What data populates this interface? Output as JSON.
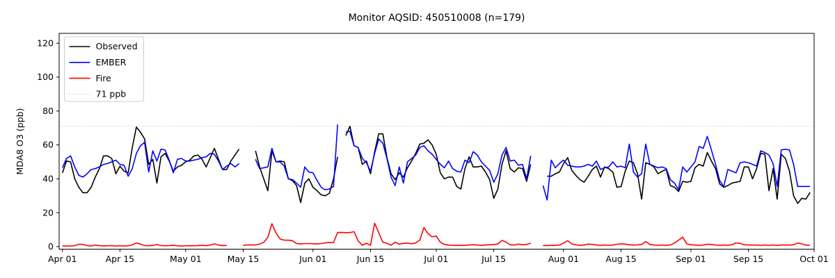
{
  "chart_data": {
    "type": "line",
    "title": "Monitor AQSID: 450510008 (n=179)",
    "xlabel": "",
    "ylabel": "MDA8 O3 (ppb)",
    "grid": false,
    "legend_position": "upper-left",
    "ylim": [
      -1.5,
      125.8
    ],
    "xlim_days": [
      -0.8,
      183
    ],
    "y_ticks": [
      0,
      20,
      40,
      60,
      80,
      100,
      120
    ],
    "x_ticks": [
      {
        "label": "Apr 01",
        "day": 0
      },
      {
        "label": "Apr 15",
        "day": 14
      },
      {
        "label": "May 01",
        "day": 30
      },
      {
        "label": "May 15",
        "day": 44
      },
      {
        "label": "Jun 01",
        "day": 61
      },
      {
        "label": "Jun 15",
        "day": 75
      },
      {
        "label": "Jul 01",
        "day": 91
      },
      {
        "label": "Jul 15",
        "day": 105
      },
      {
        "label": "Aug 01",
        "day": 122
      },
      {
        "label": "Aug 15",
        "day": 136
      },
      {
        "label": "Sep 01",
        "day": 153
      },
      {
        "label": "Sep 15",
        "day": 167
      },
      {
        "label": "Oct 01",
        "day": 183
      }
    ],
    "threshold": {
      "label": "71 ppb",
      "value": 71,
      "color": "#d3d3d3",
      "style": "dotted"
    },
    "legend_items": [
      {
        "label": "Observed",
        "color": "#000000",
        "dash": "solid"
      },
      {
        "label": "EMBER",
        "color": "#0000ff",
        "dash": "solid"
      },
      {
        "label": "Fire",
        "color": "#ff0000",
        "dash": "solid"
      },
      {
        "label": "71 ppb",
        "color": "#d3d3d3",
        "dash": "dotted"
      }
    ],
    "x_start_date": "Apr 01",
    "x_end_date": "Oct 01",
    "series": [
      {
        "name": "Observed",
        "color": "#000000",
        "values": [
          43.5,
          50.5,
          50,
          40,
          35,
          31.8,
          31.8,
          35,
          41,
          46,
          53.5,
          53.5,
          52,
          43,
          47.5,
          44.5,
          43.5,
          58.5,
          70.5,
          67.5,
          63.5,
          48.5,
          51.5,
          37.5,
          53,
          55,
          50.5,
          44.5,
          47,
          48,
          50,
          51,
          53.5,
          54,
          51.5,
          47,
          52.5,
          58,
          51.5,
          45.5,
          45.5,
          50.5,
          54,
          57.5,
          null,
          null,
          null,
          56.5,
          47,
          40,
          33,
          56.5,
          50,
          50.5,
          50,
          40,
          39,
          36,
          26,
          37.5,
          40,
          35,
          33,
          30.5,
          30,
          31.5,
          40,
          53,
          null,
          65.5,
          71,
          59.5,
          58.5,
          48.5,
          50.5,
          43,
          56,
          66.5,
          66.5,
          52.5,
          43,
          39.5,
          43.5,
          41,
          46.5,
          50.5,
          55,
          60.5,
          61,
          63,
          60,
          54.5,
          43.5,
          40,
          41,
          41,
          35.5,
          34,
          46,
          53,
          47,
          47,
          47.5,
          44,
          39.5,
          28.5,
          34,
          48.5,
          56.5,
          46,
          44,
          46.5,
          46,
          38.5,
          48.5,
          null,
          null,
          null,
          41.5,
          41.5,
          43,
          44,
          49,
          52.5,
          45,
          42,
          39.5,
          38,
          41.5,
          45.5,
          47.5,
          41,
          47,
          46,
          44,
          35,
          35.5,
          44.5,
          50.5,
          49.5,
          43,
          28,
          49.5,
          48.5,
          47,
          43,
          44.5,
          45.5,
          36,
          35,
          32.5,
          38.5,
          38,
          38.5,
          46.5,
          48.5,
          47.5,
          55.5,
          50.5,
          46,
          37,
          35,
          36,
          37.5,
          38,
          38.5,
          47,
          47,
          40,
          46,
          55,
          54.5,
          33,
          46,
          28,
          54.5,
          52,
          44.5,
          30,
          25.5,
          28.5,
          28,
          32
        ]
      },
      {
        "name": "EMBER",
        "color": "#0000ff",
        "values": [
          46.5,
          52,
          53.5,
          47,
          42,
          41,
          43,
          45.5,
          46,
          47,
          48.5,
          49,
          50,
          51,
          48.5,
          48,
          41.5,
          46,
          55,
          59.5,
          61.5,
          44,
          56.5,
          50.5,
          57.5,
          57,
          51,
          43.5,
          51.5,
          52,
          50.5,
          50.5,
          51,
          51.5,
          52.5,
          53,
          55,
          54.5,
          50.5,
          45.5,
          47.5,
          49,
          47,
          49,
          null,
          null,
          null,
          51.5,
          46,
          46.5,
          47,
          58,
          50,
          50,
          47.5,
          40,
          39.5,
          37.5,
          35,
          47,
          44,
          43.5,
          39,
          35,
          33.5,
          34,
          35.5,
          72,
          null,
          67.5,
          68,
          59.5,
          58.5,
          52,
          49.5,
          44.5,
          55,
          63.5,
          61,
          52,
          41,
          36,
          47,
          37.5,
          50,
          52,
          54,
          58.5,
          59.5,
          56.5,
          54.5,
          51.5,
          48.5,
          46.5,
          50.5,
          46,
          44.5,
          44,
          51,
          49.5,
          56,
          54,
          50,
          47.5,
          45,
          38,
          43,
          54,
          58.5,
          50.5,
          51,
          48,
          48.5,
          40,
          53.5,
          null,
          null,
          36,
          27.5,
          51,
          46.5,
          49,
          51,
          48,
          47.5,
          47,
          47,
          47.5,
          48.5,
          47.5,
          50.5,
          45.5,
          46.5,
          47,
          50,
          47,
          47.5,
          46.5,
          60.5,
          44,
          41,
          43,
          60.5,
          48.5,
          47.5,
          46.5,
          47,
          46,
          39.5,
          37.5,
          33.5,
          47,
          44,
          47,
          50,
          59,
          58,
          65,
          57,
          48.5,
          39,
          35.5,
          45.5,
          44.5,
          43.5,
          49.5,
          50,
          49.5,
          48.5,
          47.5,
          56.5,
          55.5,
          54,
          49,
          35.5,
          57,
          57.5,
          57,
          48.5,
          35.5,
          35.5,
          35.5,
          35.5
        ]
      },
      {
        "name": "Fire",
        "color": "#ff0000",
        "values": [
          0.4,
          0.3,
          0.4,
          0.6,
          1.4,
          1.3,
          0.6,
          0.4,
          0.9,
          0.6,
          0.4,
          0.5,
          0.6,
          0.4,
          0.5,
          0.4,
          0.5,
          1.0,
          2.1,
          1.5,
          0.6,
          0.5,
          0.7,
          1.2,
          0.6,
          0.5,
          0.6,
          0.8,
          0.5,
          0.4,
          0.5,
          0.6,
          0.5,
          0.6,
          0.8,
          0.6,
          0.9,
          1.6,
          0.9,
          0.6,
          0.7,
          null,
          null,
          null,
          0.8,
          1.0,
          1.0,
          1.0,
          1.5,
          2.5,
          5.5,
          13.5,
          8.0,
          4.5,
          3.8,
          3.8,
          3.5,
          1.8,
          1.6,
          1.8,
          1.8,
          1.7,
          1.6,
          1.8,
          2.2,
          2.5,
          2.4,
          8.3,
          8.4,
          8.2,
          8.3,
          8.8,
          3.4,
          0.8,
          2.0,
          0.8,
          13.8,
          8.2,
          2.6,
          2.0,
          0.8,
          2.6,
          1.4,
          1.9,
          2.1,
          1.6,
          2.2,
          3.8,
          11.2,
          7.7,
          5.8,
          6.2,
          2.6,
          1.3,
          0.9,
          0.8,
          0.7,
          0.7,
          0.8,
          0.9,
          1.1,
          0.9,
          0.8,
          0.9,
          1.1,
          1.2,
          1.6,
          3.7,
          2.6,
          1.1,
          0.9,
          1.5,
          1.1,
          1.3,
          2.0,
          null,
          null,
          0.7,
          0.6,
          0.7,
          0.8,
          0.9,
          2.1,
          3.4,
          1.6,
          1.1,
          0.8,
          0.9,
          1.5,
          1.3,
          0.9,
          0.8,
          0.9,
          0.8,
          0.9,
          1.4,
          1.6,
          1.5,
          1.1,
          0.9,
          1.0,
          1.3,
          3.0,
          1.3,
          0.9,
          0.8,
          0.9,
          0.8,
          0.9,
          2.1,
          3.8,
          5.6,
          1.6,
          1.1,
          0.9,
          0.8,
          0.9,
          1.4,
          1.3,
          0.9,
          0.8,
          0.9,
          0.8,
          1.1,
          2.2,
          1.9,
          1.1,
          1.0,
          0.9,
          0.9,
          0.8,
          0.9,
          0.8,
          0.9,
          0.8,
          0.9,
          1.0,
          0.9,
          1.1,
          2.1,
          1.6,
          0.9,
          0.8
        ]
      }
    ]
  }
}
